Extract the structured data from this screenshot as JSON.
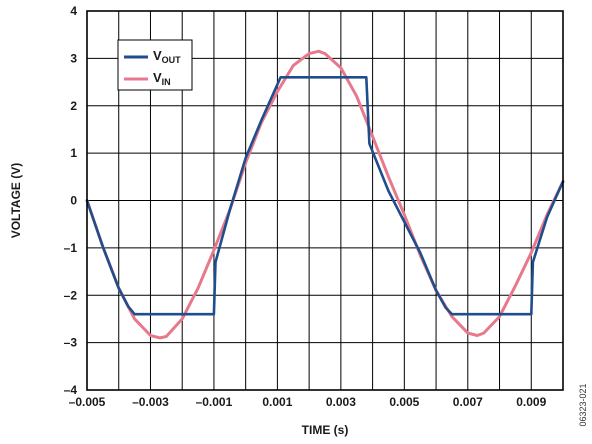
{
  "chart_data": {
    "type": "line",
    "xlabel": "TIME (s)",
    "ylabel": "VOLTAGE (V)",
    "xlim": [
      -0.005,
      0.01
    ],
    "ylim": [
      -4,
      4
    ],
    "x_ticks": [
      -0.005,
      -0.004,
      -0.003,
      -0.002,
      -0.001,
      0,
      0.001,
      0.002,
      0.003,
      0.004,
      0.005,
      0.006,
      0.007,
      0.008,
      0.009,
      0.01
    ],
    "x_tick_labels": [
      "–0.005",
      "–0.003",
      "–0.001",
      "0.001",
      "0.003",
      "0.005",
      "0.007",
      "0.009"
    ],
    "x_tick_label_values": [
      -0.005,
      -0.003,
      -0.001,
      0.001,
      0.003,
      0.005,
      0.007,
      0.009
    ],
    "y_ticks": [
      -4,
      -3,
      -2,
      -1,
      0,
      1,
      2,
      3,
      4
    ],
    "y_tick_labels": [
      "–4",
      "–3",
      "–2",
      "–1",
      "0",
      "1",
      "2",
      "3",
      "4"
    ],
    "grid": true,
    "legend_position": "top-left",
    "series": [
      {
        "name_main": "V",
        "name_sub": "OUT",
        "color": "#1f4e8c",
        "x": [
          -0.005,
          -0.0045,
          -0.004,
          -0.0037,
          -0.0035,
          -0.001,
          -0.00095,
          -0.0005,
          0.0,
          0.0005,
          0.0011,
          0.0013,
          0.0038,
          0.0039,
          0.0045,
          0.005,
          0.0055,
          0.006,
          0.0063,
          0.0065,
          0.009,
          0.00905,
          0.0095,
          0.01
        ],
        "y": [
          0.0,
          -0.98,
          -1.85,
          -2.24,
          -2.4,
          -2.4,
          -1.3,
          -0.2,
          0.9,
          1.7,
          2.6,
          2.6,
          2.6,
          1.2,
          0.2,
          -0.45,
          -1.1,
          -1.9,
          -2.26,
          -2.4,
          -2.4,
          -1.3,
          -0.35,
          0.4
        ]
      },
      {
        "name_main": "V",
        "name_sub": "IN",
        "color": "#e8788c",
        "x": [
          -0.005,
          -0.0045,
          -0.004,
          -0.0035,
          -0.003,
          -0.0027,
          -0.0025,
          -0.002,
          -0.0015,
          -0.001,
          -0.0005,
          0.0,
          0.0005,
          0.001,
          0.0015,
          0.002,
          0.0023,
          0.0025,
          0.003,
          0.0035,
          0.004,
          0.0045,
          0.005,
          0.0055,
          0.006,
          0.0065,
          0.007,
          0.0073,
          0.0075,
          0.008,
          0.0085,
          0.009,
          0.0095,
          0.01
        ],
        "y": [
          0.0,
          -0.98,
          -1.85,
          -2.5,
          -2.85,
          -2.9,
          -2.87,
          -2.5,
          -1.85,
          -1.05,
          -0.2,
          0.8,
          1.65,
          2.3,
          2.85,
          3.1,
          3.15,
          3.1,
          2.8,
          2.2,
          1.35,
          0.5,
          -0.3,
          -1.15,
          -1.9,
          -2.45,
          -2.8,
          -2.85,
          -2.8,
          -2.45,
          -1.8,
          -1.1,
          -0.3,
          0.4
        ]
      }
    ],
    "figure_id": "06323-021"
  }
}
